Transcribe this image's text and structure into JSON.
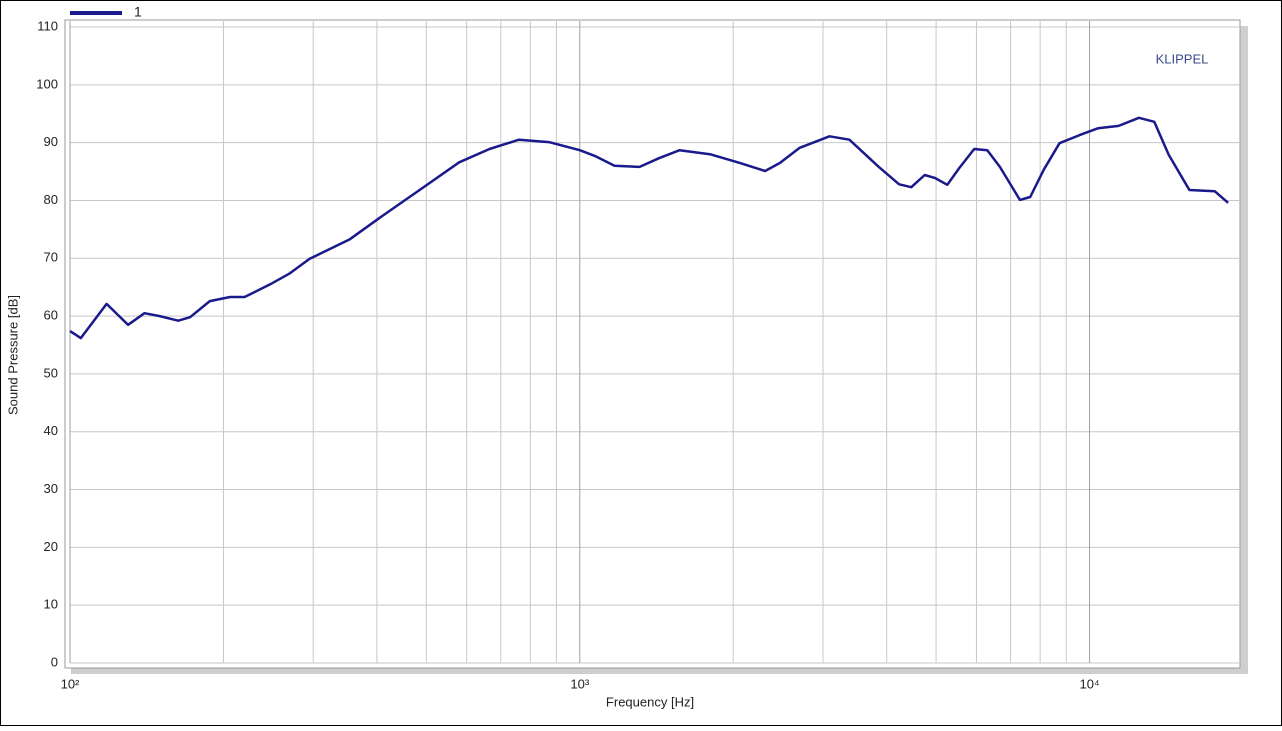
{
  "chart_data": {
    "type": "line",
    "xlabel": "Frequency [Hz]",
    "ylabel": "Sound Pressure [dB]",
    "annotation": "KLIPPEL",
    "xscale": "log",
    "grid": true,
    "legend": "top-left",
    "xlim": [
      100,
      20000
    ],
    "ylim": [
      0,
      110
    ],
    "xticks": [
      {
        "value": 100,
        "label": "10²"
      },
      {
        "value": 1000,
        "label": "10³"
      },
      {
        "value": 10000,
        "label": "10⁴"
      }
    ],
    "xminorticks": [
      200,
      300,
      400,
      500,
      600,
      700,
      800,
      900,
      2000,
      3000,
      4000,
      5000,
      6000,
      7000,
      8000,
      9000
    ],
    "yticks": [
      0,
      10,
      20,
      30,
      40,
      50,
      60,
      70,
      80,
      90,
      100,
      110
    ],
    "x": [
      100,
      105,
      118,
      130,
      140,
      150,
      163,
      172,
      188,
      206,
      220,
      247,
      270,
      295,
      354,
      405,
      485,
      580,
      665,
      760,
      870,
      1000,
      1070,
      1170,
      1310,
      1430,
      1570,
      1800,
      2060,
      2310,
      2470,
      2700,
      3090,
      3380,
      3860,
      4230,
      4470,
      4750,
      4970,
      5260,
      5550,
      5940,
      6300,
      6670,
      7300,
      7650,
      8130,
      8730,
      9560,
      10400,
      11400,
      12500,
      13400,
      14300,
      15700,
      17600,
      18700
    ],
    "series": [
      {
        "name": "1",
        "color": "#1a1a8c",
        "values": [
          57.4,
          56.2,
          62.1,
          58.5,
          60.5,
          60,
          59.2,
          59.8,
          62.6,
          63.3,
          63.3,
          65.5,
          67.4,
          69.9,
          73.3,
          77,
          81.8,
          86.6,
          88.9,
          90.5,
          90.1,
          88.7,
          87.7,
          86,
          85.8,
          87.3,
          88.7,
          88,
          86.5,
          85.1,
          86.5,
          89.1,
          91.1,
          90.5,
          85.8,
          82.8,
          82.3,
          84.4,
          83.9,
          82.7,
          85.6,
          88.9,
          88.7,
          85.8,
          80.1,
          80.6,
          85.3,
          89.9,
          91.3,
          92.5,
          92.9,
          94.3,
          93.6,
          87.9,
          81.8,
          81.6,
          79.6
        ]
      }
    ]
  }
}
